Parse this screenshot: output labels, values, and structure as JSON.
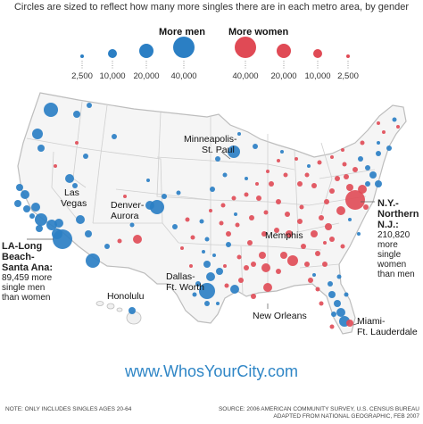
{
  "subtitle": "Circles are sized to reflect how many more singles there are in each metro area, by gender",
  "colors": {
    "men": "#2b7fc4",
    "women": "#e04a55",
    "land": "#f5f5f5",
    "border": "#bdbdbd"
  },
  "legend": {
    "men_label": "More men",
    "women_label": "More women",
    "men_ticks": [
      "2,500",
      "10,000",
      "20,000",
      "40,000"
    ],
    "women_ticks": [
      "40,000",
      "20,000",
      "10,000",
      "2,500"
    ]
  },
  "labels": {
    "minneapolis": [
      "Minneapolis-",
      "St. Paul"
    ],
    "lasvegas": [
      "Las",
      "Vegas"
    ],
    "denver": [
      "Denver-",
      "Aurora"
    ],
    "memphis": "Memphis",
    "dallas": [
      "Dallas-",
      "Ft. Worth"
    ],
    "honolulu": "Honolulu",
    "neworleans": "New Orleans",
    "miami": [
      "Miami-",
      "Ft. Lauderdale"
    ]
  },
  "callouts": {
    "la": {
      "title": [
        "LA-Long",
        "Beach-",
        "Santa Ana:"
      ],
      "text": [
        "89,459 more",
        "single men",
        "than women"
      ]
    },
    "ny": {
      "title": [
        "N.Y.-",
        "Northern",
        "N.J.:"
      ],
      "text": [
        "210,820",
        "more single",
        "women",
        "than men"
      ]
    }
  },
  "website": "www.WhosYourCity.com",
  "footnote_left": "NOTE: ONLY INCLUDES SINGLES AGES 20-64",
  "footnote_right": [
    "SOURCE: 2006 AMERICAN COMMUNITY SURVEY, U.S. CENSUS BUREAU",
    "ADAPTED FROM NATIONAL GEOGRAPHIC, FEB 2007"
  ]
}
